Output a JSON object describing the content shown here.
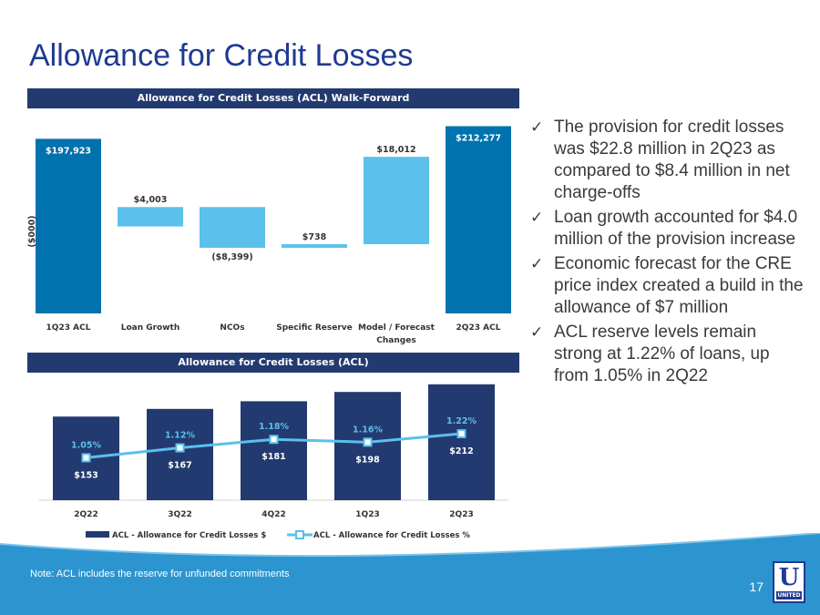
{
  "title": "Allowance for Credit Losses",
  "colors": {
    "navy": "#223a70",
    "primary_blue": "#0072ae",
    "light_blue": "#5bc0eb",
    "title_blue": "#1f3a93",
    "footer_blue": "#2c95d0"
  },
  "chart_data": [
    {
      "type": "waterfall",
      "title": "Allowance for Credit Losses (ACL) Walk-Forward",
      "ylabel": "($000)",
      "xlabel": "",
      "categories": [
        "1Q23 ACL",
        "Loan Growth",
        "NCOs",
        "Specific Reserve",
        "Model / Forecast Changes",
        "2Q23 ACL"
      ],
      "values": [
        197923,
        4003,
        -8399,
        738,
        18012,
        212277
      ],
      "labels": [
        "$197,923",
        "$4,003",
        "($8,399)",
        "$738",
        "$18,012",
        "$212,277"
      ],
      "totals": [
        true,
        false,
        false,
        false,
        false,
        true
      ],
      "ylim": [
        0,
        220000
      ]
    },
    {
      "type": "bar+line",
      "title": "Allowance for Credit Losses (ACL)",
      "categories": [
        "2Q22",
        "3Q22",
        "4Q22",
        "1Q23",
        "2Q23"
      ],
      "series": [
        {
          "name": "ACL - Allowance for Credit Losses $",
          "type": "bar",
          "values": [
            153,
            167,
            181,
            198,
            212
          ],
          "labels": [
            "$153",
            "$167",
            "$181",
            "$198",
            "$212"
          ]
        },
        {
          "name": "ACL - Allowance for Credit Losses %",
          "type": "line",
          "values": [
            1.05,
            1.12,
            1.18,
            1.16,
            1.22
          ],
          "labels": [
            "1.05%",
            "1.12%",
            "1.18%",
            "1.16%",
            "1.22%"
          ]
        }
      ],
      "bar_ylim": [
        0,
        220
      ],
      "line_ylim": [
        0.75,
        1.6
      ]
    }
  ],
  "bullets": [
    "The provision for credit losses was $22.8 million in 2Q23 as compared to $8.4 million in net charge-offs",
    "Loan growth accounted for $4.0 million of the provision increase",
    "Economic forecast for the CRE price index created a build in the allowance of $7 million",
    "ACL reserve levels remain strong at 1.22% of loans, up from 1.05% in 2Q22"
  ],
  "check_mark": "✓",
  "note": "Note: ACL includes the reserve for unfunded commitments",
  "page_number": "17",
  "logo": {
    "letter": "U",
    "word": "UNITED",
    "icon": "united-bank-logo"
  }
}
